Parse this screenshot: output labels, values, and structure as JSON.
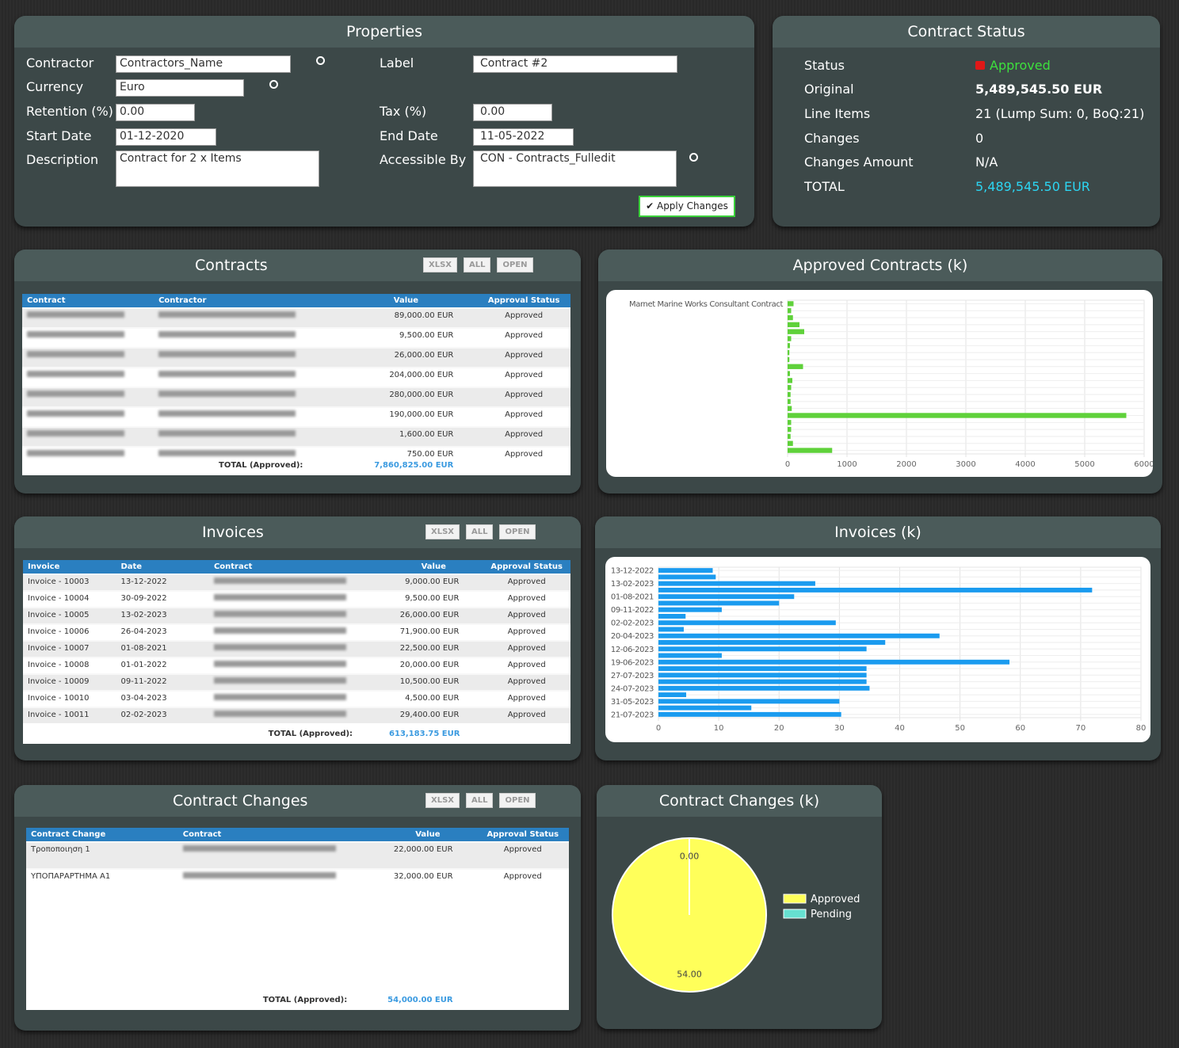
{
  "properties": {
    "title": "Properties",
    "fields": [
      {
        "label": "Contractor",
        "value": "Contractors_Name"
      },
      {
        "label": "Currency",
        "value": "Euro"
      },
      {
        "label": "Retention (%)",
        "value": "0.00"
      },
      {
        "label": "Start Date",
        "value": "01-12-2020"
      },
      {
        "label": "Description",
        "value": "Contract for 2 x Items"
      },
      {
        "label": "Label",
        "value": "Contract #2"
      },
      {
        "label": "Tax (%)",
        "value": "0.00"
      },
      {
        "label": "End Date",
        "value": "11-05-2022"
      },
      {
        "label": "Accessible By",
        "value": "CON - Contracts_Fulledit"
      }
    ],
    "apply_button": "Apply Changes"
  },
  "contract_status": {
    "title": "Contract Status",
    "rows": [
      {
        "label": "Status",
        "value": "Approved"
      },
      {
        "label": "Original",
        "value": "5,489,545.50 EUR"
      },
      {
        "label": "Line Items",
        "value": "21 (Lump Sum: 0, BoQ:21)"
      },
      {
        "label": "Changes",
        "value": "0"
      },
      {
        "label": "Changes Amount",
        "value": "N/A"
      },
      {
        "label": "TOTAL",
        "value": "5,489,545.50 EUR"
      }
    ]
  },
  "contracts": {
    "title": "Contracts",
    "buttons": [
      "XLSX",
      "ALL",
      "OPEN"
    ],
    "columns": [
      "Contract",
      "Contractor",
      "Value",
      "Approval Status"
    ],
    "rows": [
      [
        null,
        null,
        "89,000.00 EUR",
        "Approved"
      ],
      [
        null,
        null,
        "9,500.00 EUR",
        "Approved"
      ],
      [
        null,
        null,
        "26,000.00 EUR",
        "Approved"
      ],
      [
        null,
        null,
        "204,000.00 EUR",
        "Approved"
      ],
      [
        null,
        null,
        "280,000.00 EUR",
        "Approved"
      ],
      [
        null,
        null,
        "190,000.00 EUR",
        "Approved"
      ],
      [
        null,
        null,
        "1,600.00 EUR",
        "Approved"
      ],
      [
        null,
        null,
        "750.00 EUR",
        "Approved"
      ]
    ],
    "total_label": "TOTAL (Approved):",
    "total": "7,860,825.00 EUR"
  },
  "invoices": {
    "title": "Invoices",
    "buttons": [
      "XLSX",
      "ALL",
      "OPEN"
    ],
    "columns": [
      "Invoice",
      "Date",
      "Contract",
      "Value",
      "Approval Status"
    ],
    "rows": [
      [
        "Invoice - 10003",
        "13-12-2022",
        null,
        "9,000.00 EUR",
        "Approved"
      ],
      [
        "Invoice - 10004",
        "30-09-2022",
        null,
        "9,500.00 EUR",
        "Approved"
      ],
      [
        "Invoice - 10005",
        "13-02-2023",
        null,
        "26,000.00 EUR",
        "Approved"
      ],
      [
        "Invoice - 10006",
        "26-04-2023",
        null,
        "71,900.00 EUR",
        "Approved"
      ],
      [
        "Invoice - 10007",
        "01-08-2021",
        null,
        "22,500.00 EUR",
        "Approved"
      ],
      [
        "Invoice - 10008",
        "01-01-2022",
        null,
        "20,000.00 EUR",
        "Approved"
      ],
      [
        "Invoice - 10009",
        "09-11-2022",
        null,
        "10,500.00 EUR",
        "Approved"
      ],
      [
        "Invoice - 10010",
        "03-04-2023",
        null,
        "4,500.00 EUR",
        "Approved"
      ],
      [
        "Invoice - 10011",
        "02-02-2023",
        null,
        "29,400.00 EUR",
        "Approved"
      ]
    ],
    "total_label": "TOTAL (Approved):",
    "total": "613,183.75 EUR"
  },
  "contract_changes": {
    "title": "Contract Changes",
    "buttons": [
      "XLSX",
      "ALL",
      "OPEN"
    ],
    "columns": [
      "Contract Change",
      "Contract",
      "Value",
      "Approval Status"
    ],
    "rows": [
      [
        "Τροποποιηση 1",
        null,
        "22,000.00 EUR",
        "Approved"
      ],
      [
        "ΥΠΟΠΑΡΑΡΤΗΜΑ Α1",
        null,
        "32,000.00 EUR",
        "Approved"
      ]
    ],
    "total_label": "TOTAL (Approved):",
    "total": "54,000.00 EUR"
  },
  "chart_data": [
    {
      "type": "bar",
      "orientation": "horizontal",
      "title": "Approved Contracts (k)",
      "categories": [
        "Marnet Marine Works Consultant Contract",
        null,
        null,
        null,
        null,
        null,
        null,
        null,
        null,
        null,
        null,
        null,
        null,
        null,
        null,
        null,
        null,
        null,
        null,
        null,
        null,
        null
      ],
      "values": [
        100,
        60,
        90,
        200,
        280,
        60,
        40,
        30,
        30,
        260,
        40,
        80,
        60,
        50,
        50,
        70,
        5700,
        60,
        60,
        50,
        90,
        750
      ],
      "color": "#5fd13a",
      "xlim": [
        0,
        6000
      ],
      "xticks": [
        0,
        1000,
        2000,
        3000,
        4000,
        5000,
        6000
      ],
      "grid": true
    },
    {
      "type": "bar",
      "orientation": "horizontal",
      "title": "Invoices (k)",
      "categories": [
        "13-12-2022",
        null,
        "13-02-2023",
        null,
        "01-08-2021",
        null,
        "09-11-2022",
        null,
        "02-02-2023",
        null,
        "20-04-2023",
        null,
        "12-06-2023",
        null,
        "19-06-2023",
        null,
        "27-07-2023",
        null,
        "24-07-2023",
        null,
        "31-05-2023",
        null,
        "21-07-2023"
      ],
      "values": [
        9,
        9.5,
        26,
        71.9,
        22.5,
        20,
        10.5,
        4.5,
        29.4,
        4.2,
        46.6,
        37.6,
        34.5,
        10.5,
        58.2,
        34.5,
        34.5,
        34.5,
        35,
        4.6,
        30,
        15.4,
        30.3
      ],
      "color": "#1a9bef",
      "xlim": [
        0,
        80
      ],
      "xticks": [
        0,
        10,
        20,
        30,
        40,
        50,
        60,
        70,
        80
      ],
      "grid": true
    },
    {
      "type": "pie",
      "title": "Contract Changes (k)",
      "categories": [
        "Approved",
        "Pending"
      ],
      "values": [
        54,
        0
      ],
      "value_labels": [
        "54.00",
        "0.00"
      ],
      "colors": [
        "#ffff5a",
        "#66e0d0"
      ],
      "legend": "right"
    }
  ]
}
